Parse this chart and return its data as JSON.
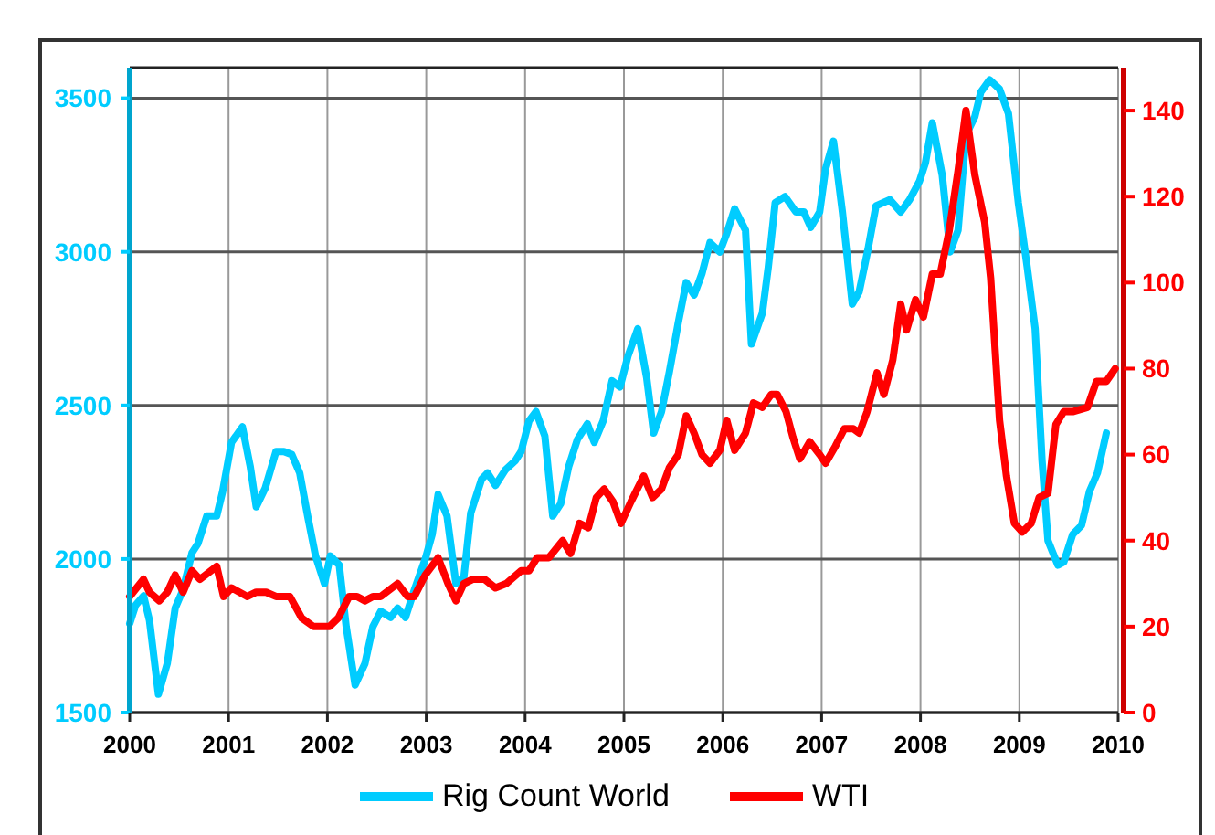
{
  "chart_data": {
    "type": "line",
    "xlim": [
      2000,
      2010
    ],
    "xticks": [
      2000,
      2001,
      2002,
      2003,
      2004,
      2005,
      2006,
      2007,
      2008,
      2009,
      2010
    ],
    "ylim": [
      1500,
      3600
    ],
    "yticks": [
      1500,
      2000,
      2500,
      3000,
      3500
    ],
    "y2lim": [
      0,
      150
    ],
    "y2ticks": [
      0,
      20,
      40,
      60,
      80,
      100,
      120,
      140
    ],
    "grid": true,
    "legend": "bottom",
    "marker": "none",
    "line_style": "solid",
    "series": [
      {
        "name": "Rig Count World",
        "color": "#00ccff",
        "x": [
          2000.0,
          2000.06,
          2000.14,
          2000.2,
          2000.29,
          2000.38,
          2000.46,
          2000.54,
          2000.63,
          2000.69,
          2000.78,
          2000.88,
          2000.94,
          2001.03,
          2001.14,
          2001.22,
          2001.28,
          2001.37,
          2001.48,
          2001.56,
          2001.64,
          2001.72,
          2001.8,
          2001.88,
          2001.97,
          2002.03,
          2002.12,
          2002.19,
          2002.28,
          2002.38,
          2002.46,
          2002.54,
          2002.64,
          2002.71,
          2002.79,
          2002.88,
          2002.99,
          2003.06,
          2003.12,
          2003.21,
          2003.3,
          2003.38,
          2003.45,
          2003.56,
          2003.62,
          2003.7,
          2003.8,
          2003.9,
          2003.96,
          2004.04,
          2004.11,
          2004.2,
          2004.28,
          2004.36,
          2004.44,
          2004.53,
          2004.63,
          2004.7,
          2004.79,
          2004.88,
          2004.96,
          2005.04,
          2005.14,
          2005.23,
          2005.3,
          2005.38,
          2005.46,
          2005.55,
          2005.63,
          2005.71,
          2005.79,
          2005.87,
          2005.97,
          2006.04,
          2006.12,
          2006.23,
          2006.29,
          2006.4,
          2006.46,
          2006.53,
          2006.63,
          2006.74,
          2006.82,
          2006.89,
          2006.98,
          2007.04,
          2007.12,
          2007.21,
          2007.31,
          2007.38,
          2007.47,
          2007.55,
          2007.69,
          2007.8,
          2007.89,
          2007.99,
          2008.05,
          2008.12,
          2008.22,
          2008.3,
          2008.38,
          2008.46,
          2008.55,
          2008.61,
          2008.7,
          2008.8,
          2008.89,
          2008.99,
          2009.08,
          2009.16,
          2009.23,
          2009.29,
          2009.39,
          2009.45,
          2009.54,
          2009.63,
          2009.71,
          2009.79,
          2009.88
        ],
        "values": [
          1790,
          1850,
          1880,
          1800,
          1560,
          1660,
          1840,
          1900,
          2020,
          2050,
          2140,
          2140,
          2220,
          2380,
          2430,
          2300,
          2170,
          2230,
          2350,
          2350,
          2340,
          2280,
          2140,
          2010,
          1920,
          2010,
          1980,
          1780,
          1590,
          1660,
          1780,
          1830,
          1810,
          1840,
          1810,
          1900,
          2000,
          2080,
          2210,
          2140,
          1920,
          1940,
          2150,
          2260,
          2280,
          2240,
          2290,
          2320,
          2350,
          2450,
          2480,
          2400,
          2140,
          2180,
          2300,
          2390,
          2440,
          2380,
          2450,
          2580,
          2560,
          2660,
          2750,
          2590,
          2410,
          2480,
          2610,
          2770,
          2900,
          2860,
          2930,
          3030,
          3000,
          3060,
          3140,
          3070,
          2700,
          2800,
          2950,
          3160,
          3180,
          3130,
          3130,
          3080,
          3130,
          3270,
          3360,
          3130,
          2830,
          2870,
          3010,
          3150,
          3170,
          3130,
          3170,
          3230,
          3290,
          3420,
          3250,
          3000,
          3070,
          3380,
          3440,
          3520,
          3560,
          3530,
          3450,
          3160,
          2950,
          2750,
          2320,
          2060,
          1980,
          1990,
          2080,
          2110,
          2220,
          2280,
          2410
        ]
      },
      {
        "name": "WTI",
        "color": "#ff0000",
        "axis": "y2",
        "x": [
          2000.0,
          2000.14,
          2000.2,
          2000.3,
          2000.38,
          2000.46,
          2000.54,
          2000.63,
          2000.71,
          2000.88,
          2000.95,
          2001.03,
          2001.19,
          2001.28,
          2001.38,
          2001.48,
          2001.62,
          2001.74,
          2001.86,
          2002.02,
          2002.11,
          2002.22,
          2002.3,
          2002.38,
          2002.46,
          2002.54,
          2002.71,
          2002.81,
          2002.88,
          2002.99,
          2003.12,
          2003.22,
          2003.3,
          2003.38,
          2003.47,
          2003.59,
          2003.7,
          2003.81,
          2003.96,
          2004.04,
          2004.12,
          2004.24,
          2004.38,
          2004.46,
          2004.55,
          2004.64,
          2004.72,
          2004.8,
          2004.89,
          2004.97,
          2005.07,
          2005.2,
          2005.29,
          2005.38,
          2005.46,
          2005.55,
          2005.63,
          2005.71,
          2005.79,
          2005.87,
          2005.97,
          2006.04,
          2006.12,
          2006.23,
          2006.31,
          2006.4,
          2006.49,
          2006.55,
          2006.64,
          2006.71,
          2006.78,
          2006.88,
          2006.98,
          2007.04,
          2007.14,
          2007.23,
          2007.32,
          2007.38,
          2007.46,
          2007.56,
          2007.63,
          2007.72,
          2007.8,
          2007.86,
          2007.95,
          2008.03,
          2008.12,
          2008.2,
          2008.29,
          2008.38,
          2008.46,
          2008.55,
          2008.65,
          2008.71,
          2008.8,
          2008.87,
          2008.95,
          2009.03,
          2009.12,
          2009.2,
          2009.29,
          2009.37,
          2009.45,
          2009.54,
          2009.69,
          2009.78,
          2009.88,
          2009.97
        ],
        "values": [
          27,
          31,
          28,
          26,
          28,
          32,
          28,
          33,
          31,
          34,
          27,
          29,
          27,
          28,
          28,
          27,
          27,
          22,
          20,
          20,
          22,
          27,
          27,
          26,
          27,
          27,
          30,
          27,
          27,
          32,
          36,
          30,
          26,
          30,
          31,
          31,
          29,
          30,
          33,
          33,
          36,
          36,
          40,
          37,
          44,
          43,
          50,
          52,
          49,
          44,
          49,
          55,
          50,
          52,
          57,
          60,
          69,
          65,
          60,
          58,
          61,
          68,
          61,
          65,
          72,
          71,
          74,
          74,
          70,
          64,
          59,
          63,
          60,
          58,
          62,
          66,
          66,
          65,
          70,
          79,
          74,
          82,
          95,
          89,
          96,
          92,
          102,
          102,
          112,
          126,
          140,
          125,
          114,
          101,
          68,
          55,
          44,
          42,
          44,
          50,
          51,
          67,
          70,
          70,
          71,
          77,
          77,
          80
        ]
      }
    ]
  }
}
